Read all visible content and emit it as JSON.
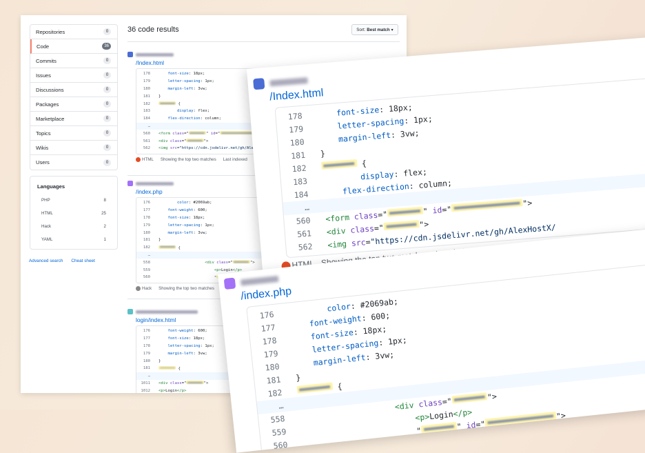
{
  "sidebar": {
    "items": [
      {
        "label": "Repositories",
        "count": "0"
      },
      {
        "label": "Code",
        "count": "36",
        "active": true
      },
      {
        "label": "Commits",
        "count": "0"
      },
      {
        "label": "Issues",
        "count": "0"
      },
      {
        "label": "Discussions",
        "count": "0"
      },
      {
        "label": "Packages",
        "count": "0"
      },
      {
        "label": "Marketplace",
        "count": "0"
      },
      {
        "label": "Topics",
        "count": "0"
      },
      {
        "label": "Wikis",
        "count": "0"
      },
      {
        "label": "Users",
        "count": "0"
      }
    ],
    "languages_title": "Languages",
    "languages": [
      {
        "name": "PHP",
        "count": "8"
      },
      {
        "name": "HTML",
        "count": "25"
      },
      {
        "name": "Hack",
        "count": "2"
      },
      {
        "name": "YAML",
        "count": "1"
      }
    ],
    "advanced_search": "Advanced search",
    "cheat_sheet": "Cheat sheet"
  },
  "header": {
    "title": "36 code results",
    "sort_prefix": "Sort:",
    "sort_value": "Best match"
  },
  "results": [
    {
      "icon_color": "#4a6cd4",
      "file": "/Index.html",
      "language": "HTML",
      "lang_color": "#e34c26",
      "matches": "Showing the top two matches",
      "indexed": "Last indexed",
      "lines": [
        {
          "n": "178",
          "seg": [
            [
              "x",
              "    "
            ],
            [
              "p",
              "font-size"
            ],
            [
              "x",
              ": 18px;"
            ]
          ]
        },
        {
          "n": "179",
          "seg": [
            [
              "x",
              "    "
            ],
            [
              "p",
              "letter-spacing"
            ],
            [
              "x",
              ": 1px;"
            ]
          ]
        },
        {
          "n": "180",
          "seg": [
            [
              "x",
              "    "
            ],
            [
              "p",
              "margin-left"
            ],
            [
              "x",
              ": 3vw;"
            ]
          ]
        },
        {
          "n": "181",
          "seg": [
            [
              "x",
              "}"
            ]
          ]
        },
        {
          "n": "182",
          "seg": [
            [
              "b",
              ""
            ],
            [
              "x",
              " {"
            ]
          ]
        },
        {
          "n": "183",
          "seg": [
            [
              "x",
              "        "
            ],
            [
              "p",
              "display"
            ],
            [
              "x",
              ": flex;"
            ]
          ]
        },
        {
          "n": "184",
          "seg": [
            [
              "x",
              "    "
            ],
            [
              "p",
              "flex-direction"
            ],
            [
              "x",
              ": column;"
            ]
          ]
        },
        {
          "sep": "…"
        },
        {
          "n": "560",
          "seg": [
            [
              "t",
              "<form "
            ],
            [
              "a",
              "class"
            ],
            [
              "x",
              "=\""
            ],
            [
              "b",
              ""
            ],
            [
              "x",
              "\" "
            ],
            [
              "a",
              "id"
            ],
            [
              "x",
              "=\""
            ],
            [
              "B",
              ""
            ],
            [
              "x",
              "\">"
            ]
          ]
        },
        {
          "n": "561",
          "seg": [
            [
              "t",
              "<div "
            ],
            [
              "a",
              "class"
            ],
            [
              "x",
              "=\""
            ],
            [
              "b",
              ""
            ],
            [
              "x",
              "\">"
            ]
          ]
        },
        {
          "n": "562",
          "seg": [
            [
              "t",
              "<img "
            ],
            [
              "a",
              "src"
            ],
            [
              "x",
              "="
            ],
            [
              "s",
              "\"https://cdn.jsdelivr.net/gh/AlexHostX/"
            ]
          ]
        }
      ]
    },
    {
      "icon_color": "#a371f7",
      "file": "/index.php",
      "language": "Hack",
      "lang_color": "#878787",
      "matches": "Showing the top two matches",
      "lines": [
        {
          "n": "176",
          "seg": [
            [
              "x",
              "        "
            ],
            [
              "p",
              "color"
            ],
            [
              "x",
              ": #2069ab;"
            ]
          ]
        },
        {
          "n": "177",
          "seg": [
            [
              "x",
              "    "
            ],
            [
              "p",
              "font-weight"
            ],
            [
              "x",
              ": 600;"
            ]
          ]
        },
        {
          "n": "178",
          "seg": [
            [
              "x",
              "    "
            ],
            [
              "p",
              "font-size"
            ],
            [
              "x",
              ": 18px;"
            ]
          ]
        },
        {
          "n": "179",
          "seg": [
            [
              "x",
              "    "
            ],
            [
              "p",
              "letter-spacing"
            ],
            [
              "x",
              ": 1px;"
            ]
          ]
        },
        {
          "n": "180",
          "seg": [
            [
              "x",
              "    "
            ],
            [
              "p",
              "margin-left"
            ],
            [
              "x",
              ": 3vw;"
            ]
          ]
        },
        {
          "n": "181",
          "seg": [
            [
              "x",
              "}"
            ]
          ]
        },
        {
          "n": "182",
          "seg": [
            [
              "b",
              ""
            ],
            [
              "x",
              " {"
            ]
          ]
        },
        {
          "sep": "…"
        },
        {
          "n": "558",
          "seg": [
            [
              "x",
              "                    "
            ],
            [
              "t",
              "<div "
            ],
            [
              "a",
              "class"
            ],
            [
              "x",
              "=\""
            ],
            [
              "b",
              ""
            ],
            [
              "x",
              "\">"
            ]
          ]
        },
        {
          "n": "559",
          "seg": [
            [
              "x",
              "                        "
            ],
            [
              "t",
              "<p>"
            ],
            [
              "x",
              "Login"
            ],
            [
              "t",
              "</p>"
            ]
          ]
        },
        {
          "n": "560",
          "seg": [
            [
              "x",
              "                        \""
            ],
            [
              "b",
              ""
            ],
            [
              "x",
              "\" "
            ],
            [
              "a",
              "id"
            ],
            [
              "x",
              "=\""
            ],
            [
              "B",
              ""
            ],
            [
              "x",
              "\">"
            ]
          ]
        }
      ]
    },
    {
      "icon_color": "#5bc0c8",
      "file": "login/index.html",
      "lines": [
        {
          "n": "176",
          "seg": [
            [
              "x",
              "    "
            ],
            [
              "p",
              "font-weight"
            ],
            [
              "x",
              ": 600;"
            ]
          ]
        },
        {
          "n": "177",
          "seg": [
            [
              "x",
              "    "
            ],
            [
              "p",
              "font-size"
            ],
            [
              "x",
              ": 18px;"
            ]
          ]
        },
        {
          "n": "178",
          "seg": [
            [
              "x",
              "    "
            ],
            [
              "p",
              "letter-spacing"
            ],
            [
              "x",
              ": 1px;"
            ]
          ]
        },
        {
          "n": "179",
          "seg": [
            [
              "x",
              "    "
            ],
            [
              "p",
              "margin-left"
            ],
            [
              "x",
              ": 3vw;"
            ]
          ]
        },
        {
          "n": "180",
          "seg": [
            [
              "x",
              "}"
            ]
          ]
        },
        {
          "n": "181",
          "seg": [
            [
              "b",
              ""
            ],
            [
              "x",
              " {"
            ]
          ]
        },
        {
          "sep": "…"
        },
        {
          "n": "1011",
          "seg": [
            [
              "t",
              "<div "
            ],
            [
              "a",
              "class"
            ],
            [
              "x",
              "=\""
            ],
            [
              "b",
              ""
            ],
            [
              "x",
              "\">"
            ]
          ]
        },
        {
          "n": "1012",
          "seg": [
            [
              "t",
              "<p>"
            ],
            [
              "x",
              "Login"
            ],
            [
              "t",
              "</p>"
            ]
          ]
        }
      ]
    }
  ]
}
